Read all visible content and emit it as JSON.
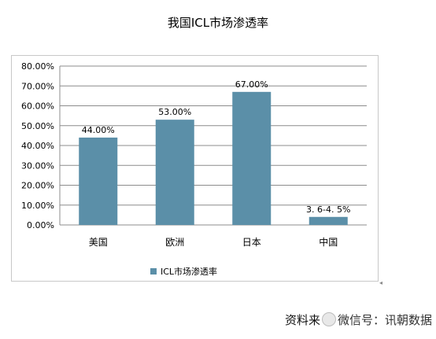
{
  "chart_data": {
    "type": "bar",
    "title": "我国ICL市场渗透率",
    "categories": [
      "美国",
      "欧洲",
      "日本",
      "中国"
    ],
    "series": [
      {
        "name": "ICL市场渗透率",
        "values": [
          44.0,
          53.0,
          67.0,
          4.05
        ],
        "data_labels": [
          "44.00%",
          "53.00%",
          "67.00%",
          "3. 6-4. 5%"
        ],
        "color": "#5b8fa8"
      }
    ],
    "ylim": [
      0,
      80
    ],
    "ytick_labels": [
      "0.00%",
      "10.00%",
      "20.00%",
      "30.00%",
      "40.00%",
      "50.00%",
      "60.00%",
      "70.00%",
      "80.00%"
    ],
    "xlabel": "",
    "ylabel": "",
    "grid": true,
    "legend": "bottom"
  },
  "source": {
    "prefix": "资料来",
    "watermark": "微信号：讯朝数据"
  }
}
